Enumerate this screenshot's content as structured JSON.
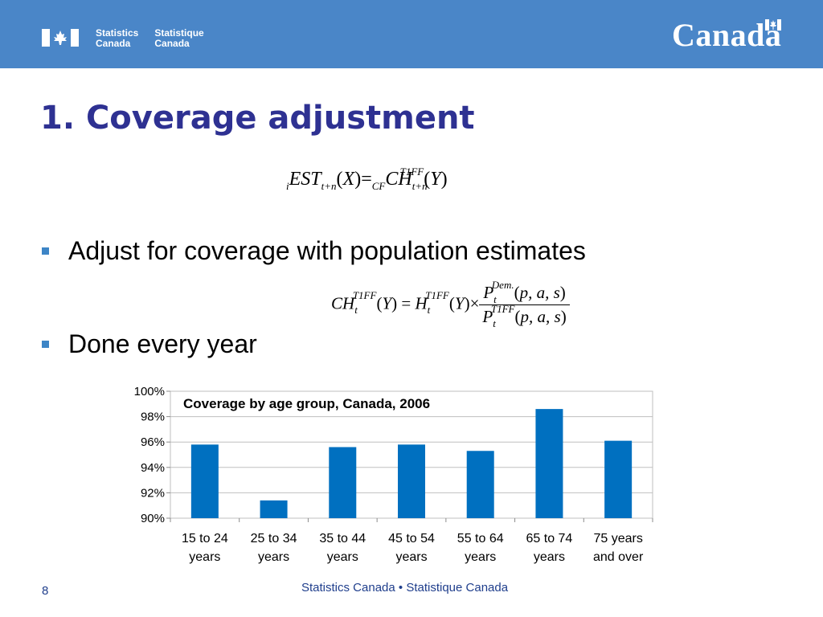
{
  "header": {
    "agency_en_line1": "Statistics",
    "agency_en_line2": "Canada",
    "agency_fr_line1": "Statistique",
    "agency_fr_line2": "Canada",
    "wordmark": "Canada",
    "bar_color": "#4a86c8"
  },
  "slide": {
    "title": "1. Coverage adjustment",
    "bullets": [
      "Adjust for coverage with population estimates",
      "Done every year"
    ]
  },
  "chart_data": {
    "type": "bar",
    "title": "Coverage by age group, Canada, 2006",
    "categories": [
      [
        "15 to 24",
        "years"
      ],
      [
        "25 to 34",
        "years"
      ],
      [
        "35 to 44",
        "years"
      ],
      [
        "45 to 54",
        "years"
      ],
      [
        "55 to 64",
        "years"
      ],
      [
        "65 to 74",
        "years"
      ],
      [
        "75 years",
        "and over"
      ]
    ],
    "values": [
      95.8,
      91.4,
      95.6,
      95.8,
      95.3,
      98.6,
      96.1
    ],
    "ylim": [
      90,
      100
    ],
    "yticks": [
      "100%",
      "98%",
      "96%",
      "94%",
      "92%",
      "90%"
    ],
    "grid": true,
    "bar_color": "#0070c0"
  },
  "footer": {
    "page_number": "8",
    "text": "Statistics Canada • Statistique Canada"
  }
}
